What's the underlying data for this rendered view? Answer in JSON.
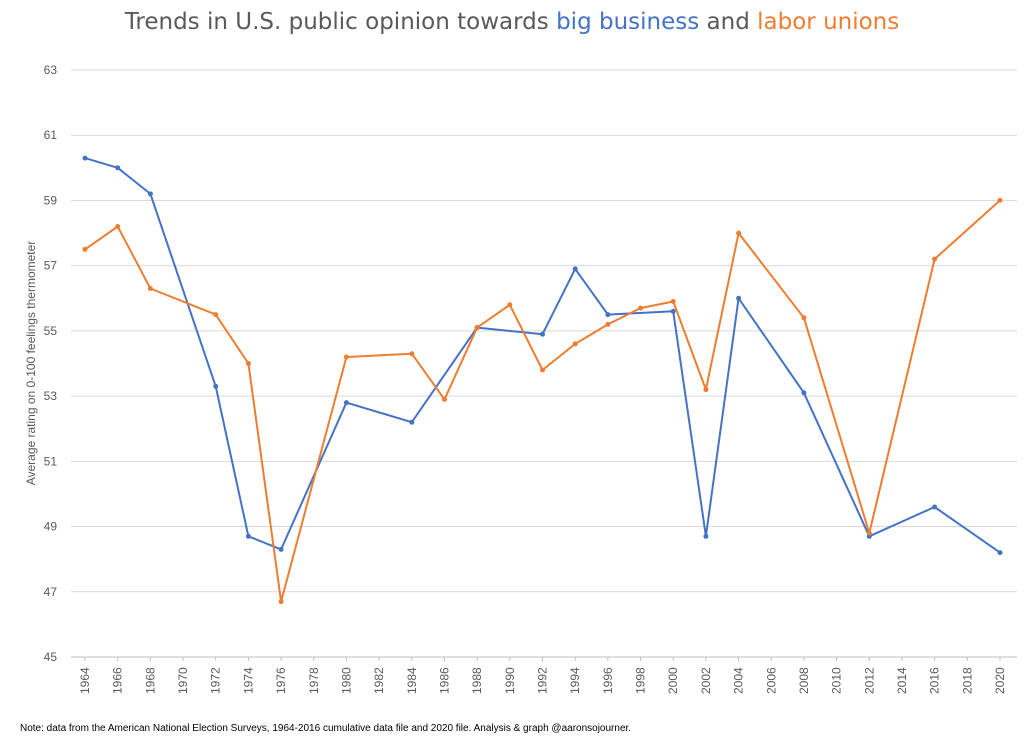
{
  "chart_data": {
    "type": "line",
    "title_parts": [
      {
        "text": "Trends in U.S. public opinion towards ",
        "color": "#595959"
      },
      {
        "text": "big business",
        "color": "#4472c4"
      },
      {
        "text": " and ",
        "color": "#595959"
      },
      {
        "text": "labor unions",
        "color": "#ed7d31"
      }
    ],
    "ylabel": "Average rating on 0-100 feelings thermometer",
    "ylim": [
      45,
      63
    ],
    "yticks": [
      45,
      47,
      49,
      51,
      53,
      55,
      57,
      59,
      61,
      63
    ],
    "xlim": [
      1964,
      2020
    ],
    "xticks": [
      1964,
      1966,
      1968,
      1970,
      1972,
      1974,
      1976,
      1978,
      1980,
      1982,
      1984,
      1986,
      1988,
      1990,
      1992,
      1994,
      1996,
      1998,
      2000,
      2002,
      2004,
      2006,
      2008,
      2010,
      2012,
      2014,
      2016,
      2018,
      2020
    ],
    "grid": "horizontal",
    "series": [
      {
        "name": "big business",
        "color": "#4472c4",
        "points": [
          {
            "x": 1964,
            "y": 60.3
          },
          {
            "x": 1966,
            "y": 60.0
          },
          {
            "x": 1968,
            "y": 59.2
          },
          {
            "x": 1972,
            "y": 53.3
          },
          {
            "x": 1974,
            "y": 48.7
          },
          {
            "x": 1976,
            "y": 48.3
          },
          {
            "x": 1980,
            "y": 52.8
          },
          {
            "x": 1984,
            "y": 52.2
          },
          {
            "x": 1988,
            "y": 55.1
          },
          {
            "x": 1992,
            "y": 54.9
          },
          {
            "x": 1994,
            "y": 56.9
          },
          {
            "x": 1996,
            "y": 55.5
          },
          {
            "x": 2000,
            "y": 55.6
          },
          {
            "x": 2002,
            "y": 48.7
          },
          {
            "x": 2004,
            "y": 56.0
          },
          {
            "x": 2008,
            "y": 53.1
          },
          {
            "x": 2012,
            "y": 48.7
          },
          {
            "x": 2016,
            "y": 49.6
          },
          {
            "x": 2020,
            "y": 48.2
          }
        ]
      },
      {
        "name": "labor unions",
        "color": "#ed7d31",
        "points": [
          {
            "x": 1964,
            "y": 57.5
          },
          {
            "x": 1966,
            "y": 58.2
          },
          {
            "x": 1968,
            "y": 56.3
          },
          {
            "x": 1972,
            "y": 55.5
          },
          {
            "x": 1974,
            "y": 54.0
          },
          {
            "x": 1976,
            "y": 46.7
          },
          {
            "x": 1980,
            "y": 54.2
          },
          {
            "x": 1984,
            "y": 54.3
          },
          {
            "x": 1986,
            "y": 52.9
          },
          {
            "x": 1988,
            "y": 55.1
          },
          {
            "x": 1990,
            "y": 55.8
          },
          {
            "x": 1992,
            "y": 53.8
          },
          {
            "x": 1994,
            "y": 54.6
          },
          {
            "x": 1996,
            "y": 55.2
          },
          {
            "x": 1998,
            "y": 55.7
          },
          {
            "x": 2000,
            "y": 55.9
          },
          {
            "x": 2002,
            "y": 53.2
          },
          {
            "x": 2004,
            "y": 58.0
          },
          {
            "x": 2008,
            "y": 55.4
          },
          {
            "x": 2012,
            "y": 48.8
          },
          {
            "x": 2016,
            "y": 57.2
          },
          {
            "x": 2020,
            "y": 59.0
          }
        ]
      }
    ],
    "note": "Note: data from the American National Election Surveys, 1964-2016 cumulative data file and 2020 file. Analysis & graph @aaronsojourner.",
    "colors": {
      "gridline": "#d9d9d9",
      "axis": "#bfbfbf",
      "text": "#595959"
    }
  }
}
